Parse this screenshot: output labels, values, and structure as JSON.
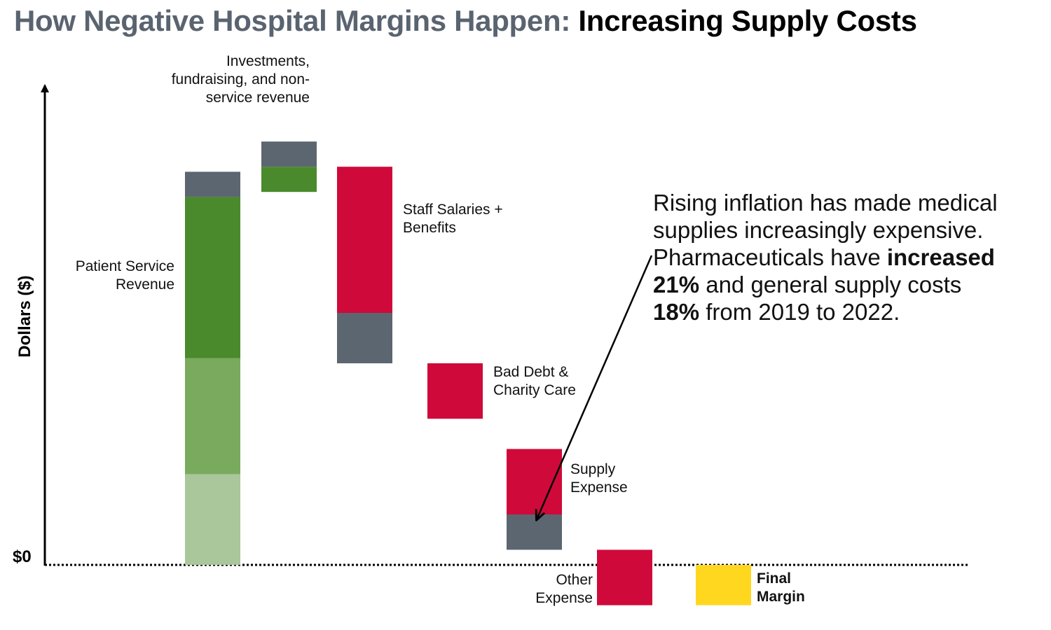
{
  "title": {
    "prefix": "How Negative Hospital Margins Happen:",
    "highlight": "Increasing Supply Costs"
  },
  "colors": {
    "revenue_dark": "#4a8a2c",
    "revenue_mid": "#7aaa5e",
    "revenue_light": "#a9c79a",
    "slate": "#5c6670",
    "expense_red": "#cf0a3a",
    "margin_yellow": "#ffd71f",
    "title_gray": "#5a6470"
  },
  "annotation": {
    "line1": "Rising inflation has made medical",
    "line2": "supplies increasingly expensive.",
    "line3_a": "Pharmaceuticals have ",
    "line3_b": "increased",
    "line4_a": "21%",
    "line4_b": " and general supply costs",
    "line5_a": "18%",
    "line5_b": " from 2019 to 2022."
  },
  "chart_data": {
    "type": "waterfall",
    "ylabel": "Dollars ($)",
    "zero_label": "$0",
    "y_tick_labels_shown": false,
    "ylim": [
      -0.1,
      1.1
    ],
    "value_units": "relative dollars (no numeric scale printed)",
    "steps": [
      {
        "key": "patient_service_revenue",
        "label_lines": [
          "Patient Service",
          "Revenue"
        ],
        "kind": "increase",
        "start": 0,
        "end": 0.78,
        "segments": [
          {
            "from": 0,
            "to": 0.18,
            "color": "revenue_light"
          },
          {
            "from": 0.18,
            "to": 0.41,
            "color": "revenue_mid"
          },
          {
            "from": 0.41,
            "to": 0.73,
            "color": "revenue_dark"
          },
          {
            "from": 0.73,
            "to": 0.78,
            "color": "slate"
          }
        ]
      },
      {
        "key": "investments",
        "label_lines": [
          "Investments,",
          "fundraising, and non-",
          "service revenue"
        ],
        "kind": "increase",
        "start": 0.74,
        "end": 0.84,
        "segments": [
          {
            "from": 0.74,
            "to": 0.79,
            "color": "revenue_dark"
          },
          {
            "from": 0.79,
            "to": 0.84,
            "color": "slate"
          }
        ]
      },
      {
        "key": "staff_salaries",
        "label_lines": [
          "Staff Salaries +",
          "Benefits"
        ],
        "kind": "decrease",
        "start": 0.79,
        "end": 0.4,
        "segments": [
          {
            "from": 0.5,
            "to": 0.79,
            "color": "expense_red"
          },
          {
            "from": 0.4,
            "to": 0.5,
            "color": "slate"
          }
        ]
      },
      {
        "key": "bad_debt",
        "label_lines": [
          "Bad Debt &",
          "Charity Care"
        ],
        "kind": "decrease",
        "start": 0.4,
        "end": 0.29,
        "segments": [
          {
            "from": 0.29,
            "to": 0.4,
            "color": "expense_red"
          }
        ]
      },
      {
        "key": "supply_expense",
        "label_lines": [
          "Supply",
          "Expense"
        ],
        "kind": "decrease",
        "start": 0.23,
        "end": 0.03,
        "segments": [
          {
            "from": 0.1,
            "to": 0.23,
            "color": "expense_red"
          },
          {
            "from": 0.03,
            "to": 0.1,
            "color": "slate"
          }
        ]
      },
      {
        "key": "other_expense",
        "label_lines": [
          "Other",
          "Expense"
        ],
        "kind": "decrease",
        "start": 0.03,
        "end": -0.08,
        "segments": [
          {
            "from": -0.08,
            "to": 0.03,
            "color": "expense_red"
          }
        ]
      },
      {
        "key": "final_margin",
        "label_lines": [
          "Final",
          "Margin"
        ],
        "kind": "total",
        "start": 0,
        "end": -0.08,
        "segments": [
          {
            "from": -0.08,
            "to": 0,
            "color": "margin_yellow"
          }
        ]
      }
    ]
  }
}
